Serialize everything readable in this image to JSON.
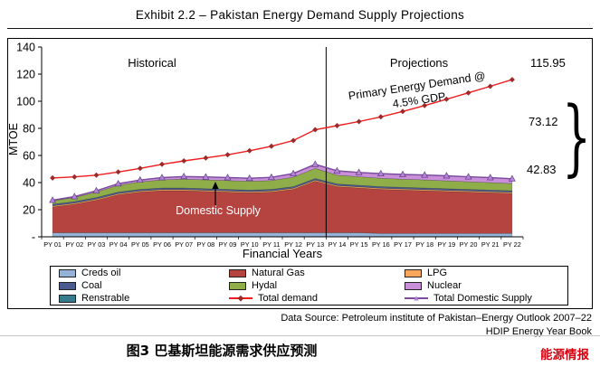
{
  "header": {
    "title": "Exhibit 2.2 – Pakistan Energy Demand Supply Projections"
  },
  "chart_data": {
    "type": "area",
    "subtype": "stacked-area-with-lines",
    "title": "Exhibit 2.2 – Pakistan Energy Demand Supply Projections",
    "xlabel": "Financial Years",
    "ylabel": "MTOE",
    "ylim": [
      0,
      140
    ],
    "grid": false,
    "y_ticks": [
      {
        "label": "-",
        "value": 0
      },
      {
        "label": "20",
        "value": 20
      },
      {
        "label": "40",
        "value": 40
      },
      {
        "label": "60",
        "value": 60
      },
      {
        "label": "80",
        "value": 80
      },
      {
        "label": "100",
        "value": 100
      },
      {
        "label": "120",
        "value": 120
      },
      {
        "label": "140",
        "value": 140
      }
    ],
    "categories": [
      "PY 01",
      "PY 02",
      "PY 03",
      "PY 04",
      "PY 05",
      "PY 06",
      "PY 07",
      "PY 08",
      "PY 09",
      "PY 10",
      "PY 11",
      "PY 12",
      "PY 13",
      "PY 14",
      "PY 15",
      "PY 16",
      "PY 17",
      "PY 18",
      "PY 19",
      "PY 20",
      "PY 21",
      "PY 22"
    ],
    "divider_after_category": "PY 13",
    "stacked_series": [
      {
        "name": "Creds oil",
        "color": "#95b3d7",
        "values": [
          3,
          3,
          3,
          3,
          3,
          3,
          3,
          3,
          3,
          3,
          3,
          3,
          3,
          3,
          3,
          2.5,
          2.5,
          2.5,
          2.5,
          2.5,
          2.5,
          2.5
        ]
      },
      {
        "name": "Natural Gas",
        "color": "#b5433f",
        "values": [
          19,
          21,
          24,
          28,
          30,
          31,
          31,
          30.5,
          30,
          29.5,
          30,
          32,
          38,
          34,
          33,
          32.5,
          32,
          31.5,
          31,
          30.5,
          30,
          29.5
        ]
      },
      {
        "name": "LPG",
        "color": "#faa75b",
        "values": [
          0.8,
          0.8,
          0.8,
          0.8,
          0.8,
          0.8,
          0.8,
          0.8,
          0.8,
          0.8,
          0.8,
          0.8,
          0.8,
          0.8,
          0.8,
          0.8,
          0.8,
          0.8,
          0.8,
          0.8,
          0.8,
          0.8
        ]
      },
      {
        "name": "Coal",
        "color": "#4b5b8e",
        "values": [
          1.2,
          1.2,
          1.2,
          1.2,
          1.2,
          1.2,
          1.2,
          1.2,
          1.2,
          1.2,
          1.2,
          1.2,
          1.2,
          1.2,
          1.2,
          1.2,
          1.2,
          1.2,
          1.2,
          1.2,
          1.2,
          1.2
        ]
      },
      {
        "name": "Hydal",
        "color": "#8fae4a",
        "values": [
          2.5,
          3,
          4,
          5,
          5.5,
          6,
          6.5,
          6.5,
          6.5,
          6.5,
          6.5,
          7,
          7.5,
          6.5,
          6.3,
          6.2,
          6,
          6,
          5.8,
          5.6,
          5.5,
          5.3
        ]
      },
      {
        "name": "Nuclear",
        "color": "#c98fd8",
        "values": [
          0.3,
          0.5,
          0.8,
          1,
          1.2,
          1.5,
          1.8,
          2,
          2,
          2,
          2.2,
          2.5,
          2.8,
          3,
          3,
          3.2,
          3.3,
          3.4,
          3.5,
          3.5,
          3.5,
          3.5
        ]
      },
      {
        "name": "Renstrable",
        "color": "#377b8f",
        "values": [
          0.2,
          0.2,
          0.2,
          0.2,
          0.2,
          0.2,
          0.2,
          0.2,
          0.2,
          0.2,
          0.2,
          0.2,
          0.2,
          0.2,
          0.2,
          0.2,
          0.2,
          0.2,
          0.2,
          0.2,
          0.2,
          0.2
        ]
      }
    ],
    "line_series": [
      {
        "name": "Total demand",
        "color": "#ee1c1c",
        "marker": "diamond",
        "marker_color": "#9d2a28",
        "values": [
          43.4,
          44.2,
          45.5,
          47.8,
          50.5,
          53.5,
          56,
          58.2,
          60.5,
          63.5,
          66.8,
          71,
          79,
          82,
          85,
          88.5,
          92.5,
          96.8,
          101.5,
          106.2,
          111,
          115.95
        ]
      },
      {
        "name": "Total Domestic Supply",
        "color": "#7a4ba0",
        "marker": "triangle",
        "marker_color": "#b584d9",
        "values": [
          27,
          29.7,
          34,
          39.2,
          41.9,
          43.7,
          44.5,
          44.2,
          43.7,
          43.2,
          43.9,
          46.7,
          53.5,
          48.7,
          47.5,
          46.6,
          46,
          45.6,
          45,
          44.3,
          43.7,
          42.83
        ]
      }
    ],
    "annotations": {
      "historical": "Historical",
      "projections": "Projections",
      "primary_line1": "Primary Energy Demand @",
      "primary_line2": "4.5% GDP",
      "domestic_supply": "Domestic Supply",
      "demand_end_value": "115.95",
      "gap_value": "73.12",
      "supply_end_value": "42.83",
      "brace": "}"
    }
  },
  "legend": {
    "items": [
      {
        "label": "Creds oil",
        "type": "rect",
        "color": "#95b3d7"
      },
      {
        "label": "Natural Gas",
        "type": "rect",
        "color": "#b5433f"
      },
      {
        "label": "LPG",
        "type": "rect",
        "color": "#faa75b"
      },
      {
        "label": "Coal",
        "type": "rect",
        "color": "#4b5b8e"
      },
      {
        "label": "Hydal",
        "type": "rect",
        "color": "#8fae4a"
      },
      {
        "label": "Nuclear",
        "type": "rect",
        "color": "#c98fd8"
      },
      {
        "label": "Renstrable",
        "type": "rect",
        "color": "#377b8f"
      },
      {
        "label": "Total demand",
        "type": "line",
        "line_color": "#ee1c1c",
        "marker": "diamond",
        "marker_color": "#9d2a28"
      },
      {
        "label": "Total Domestic Supply",
        "type": "line",
        "line_color": "#7a4ba0",
        "marker": "triangle",
        "marker_color": "#b584d9"
      }
    ]
  },
  "source": {
    "line1": "Data Source: Petroleum institute of Pakistan–Energy Outlook 2007–22",
    "line2": "HDIP Energy Year Book"
  },
  "footer": {
    "caption": "图3  巴基斯坦能源需求供应预测",
    "brand": "能源情报"
  }
}
